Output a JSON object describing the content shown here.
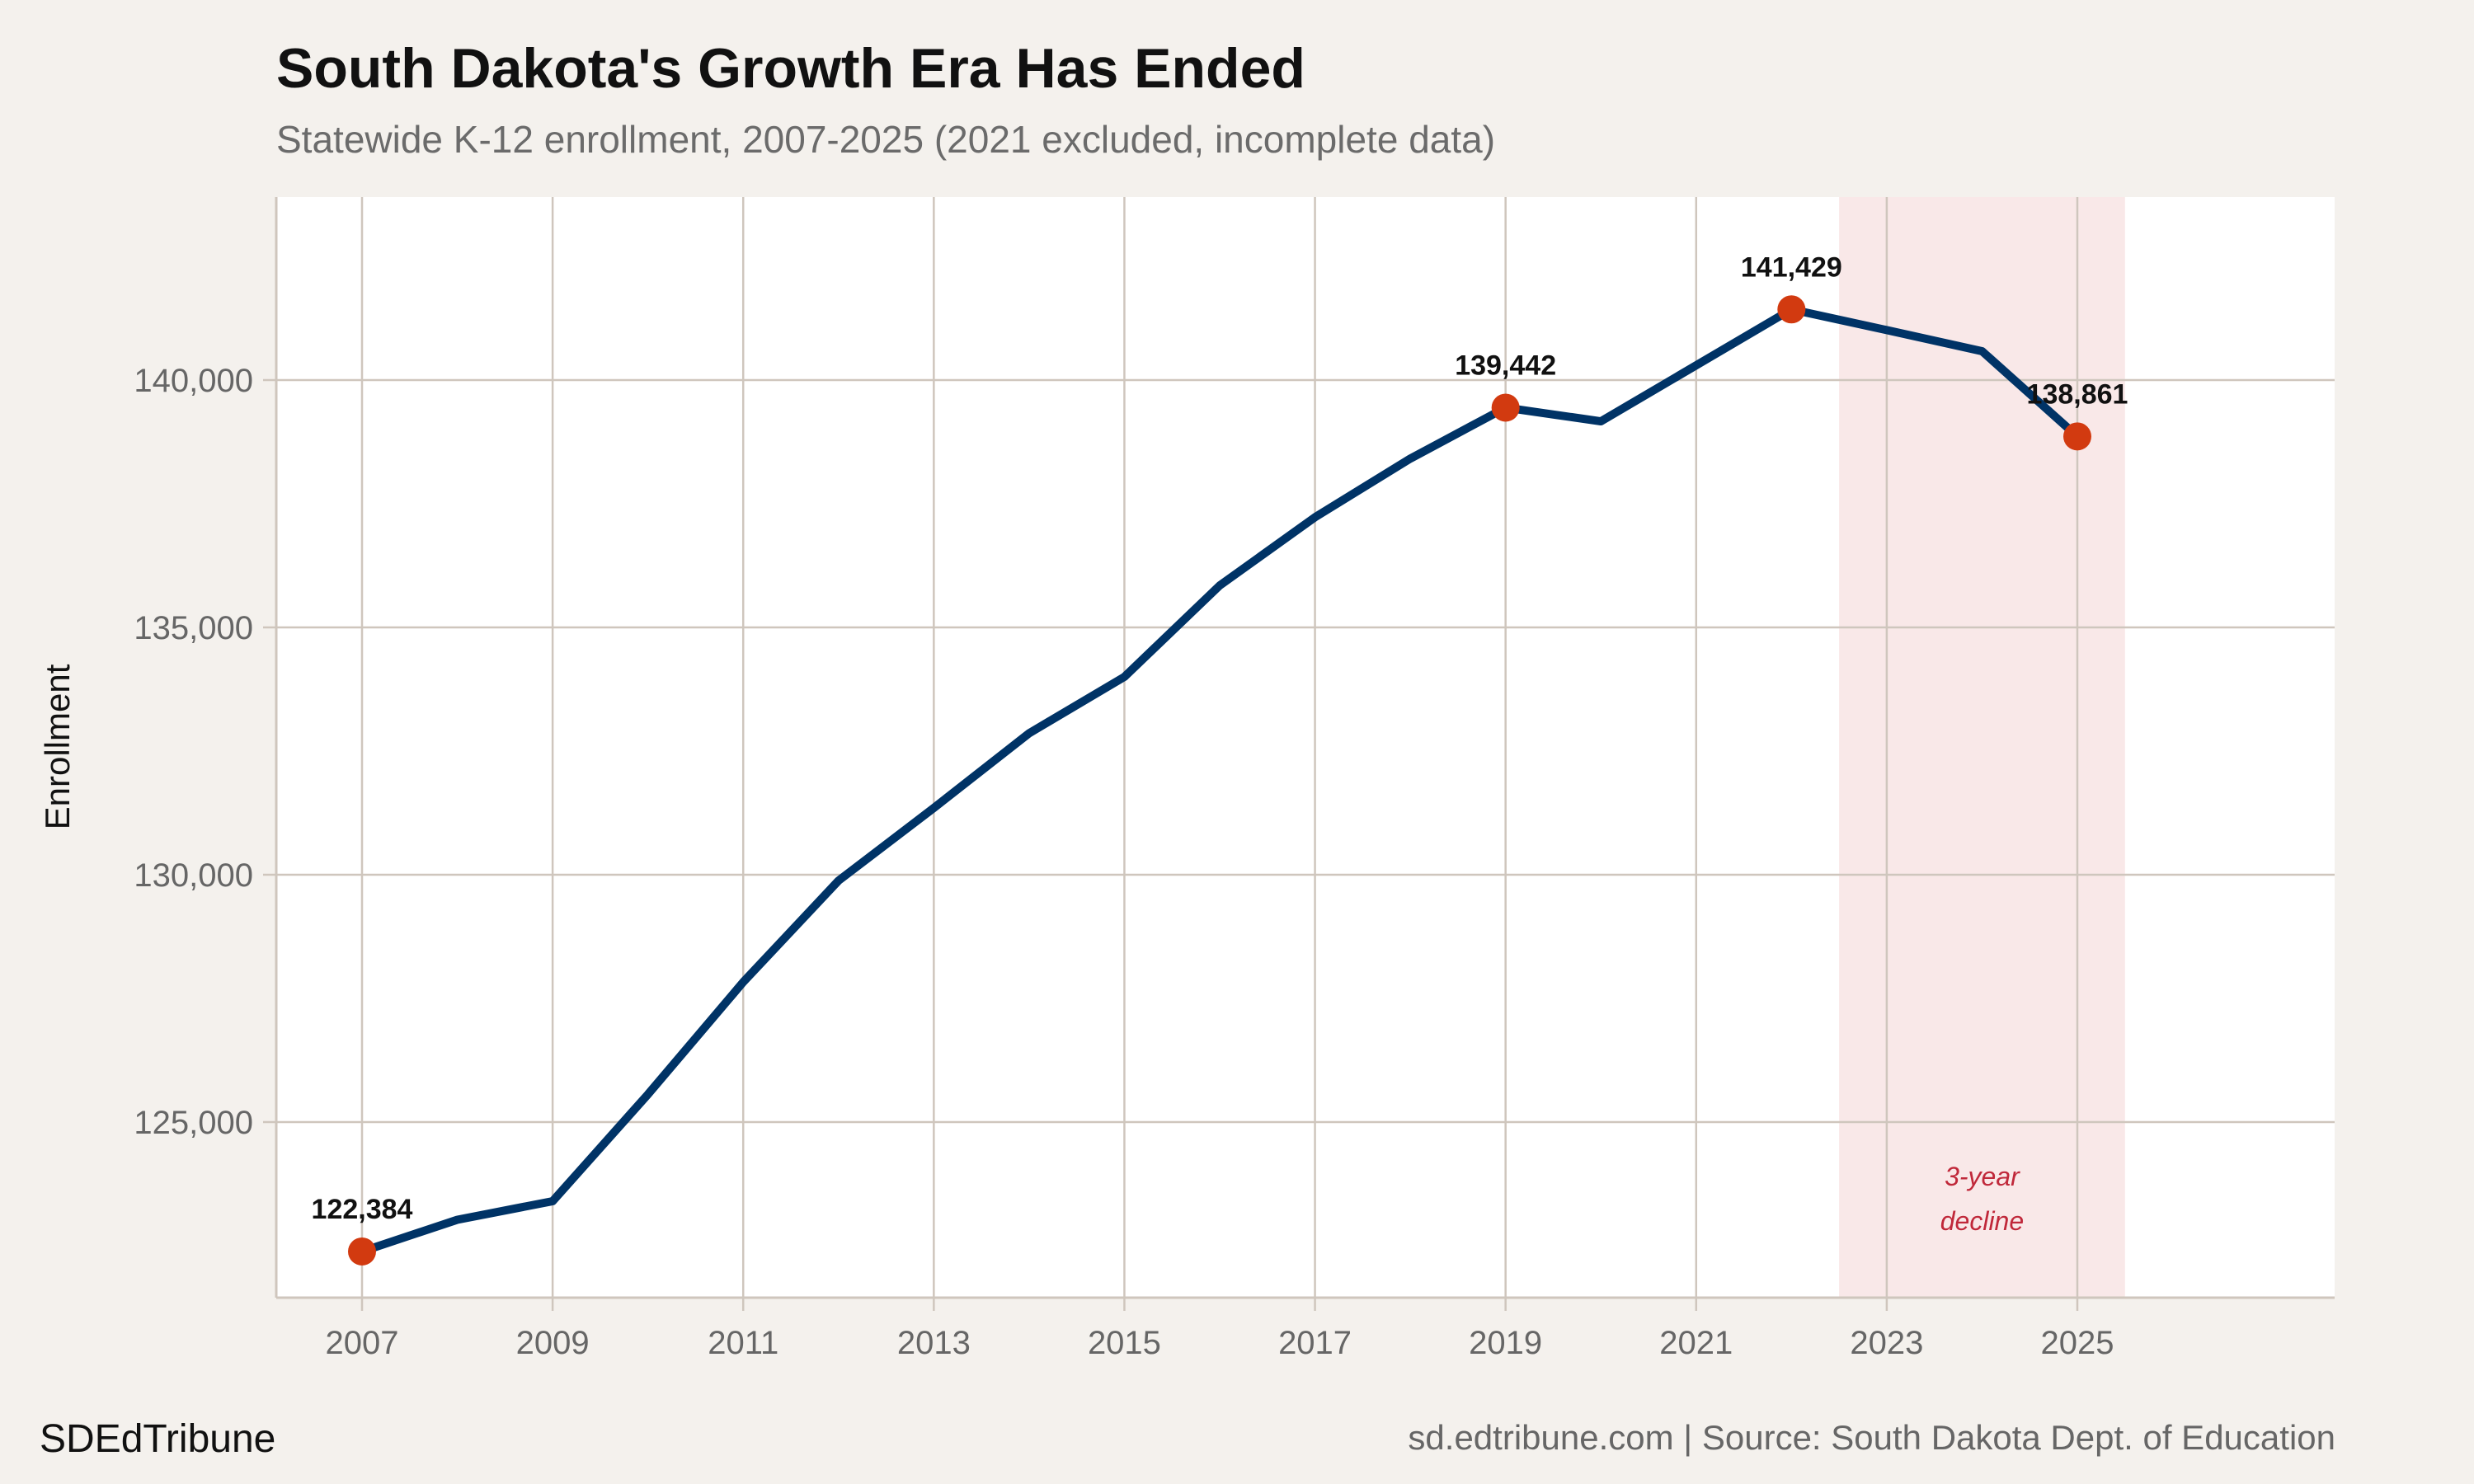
{
  "chart_data": {
    "type": "line",
    "title": "South Dakota's Growth Era Has Ended",
    "subtitle": "Statewide K-12 enrollment, 2007-2025 (2021 excluded, incomplete data)",
    "xlabel": "",
    "ylabel": "Enrollment",
    "x": [
      2007,
      2008,
      2009,
      2010,
      2011,
      2012,
      2013,
      2014,
      2015,
      2016,
      2017,
      2018,
      2019,
      2020,
      2022,
      2023,
      2024,
      2025
    ],
    "values": [
      122384,
      123025,
      123400,
      125560,
      127830,
      129880,
      131350,
      132860,
      134000,
      135847,
      137227,
      138412,
      139442,
      139166,
      141429,
      141010,
      140584,
      138861
    ],
    "highlighted_points": [
      {
        "x": 2007,
        "y": 122384,
        "label": "122,384"
      },
      {
        "x": 2019,
        "y": 139442,
        "label": "139,442"
      },
      {
        "x": 2022,
        "y": 141429,
        "label": "141,429"
      },
      {
        "x": 2025,
        "y": 138861,
        "label": "138,861"
      }
    ],
    "shaded_region": {
      "x_start": 2022.5,
      "x_end": 2025.5,
      "label_line1": "3-year",
      "label_line2": "decline"
    },
    "xlim": [
      2006.1,
      2027.7
    ],
    "ylim": [
      121450,
      143700
    ],
    "x_ticks": [
      "2007",
      "2009",
      "2011",
      "2013",
      "2015",
      "2017",
      "2019",
      "2021",
      "2023",
      "2025"
    ],
    "y_ticks": [
      {
        "value": 125000,
        "label": "125,000"
      },
      {
        "value": 130000,
        "label": "130,000"
      },
      {
        "value": 135000,
        "label": "135,000"
      },
      {
        "value": 140000,
        "label": "140,000"
      }
    ],
    "grid": true,
    "colors": {
      "line": "#003366",
      "points": "#d23a10",
      "shade": "#f9e8e8",
      "annotation": "#c0283a",
      "grid": "#cfc6bd",
      "background": "#f4f1ed"
    }
  },
  "footer": {
    "brand": "SDEdTribune",
    "source": "sd.edtribune.com | Source: South Dakota Dept. of Education"
  }
}
